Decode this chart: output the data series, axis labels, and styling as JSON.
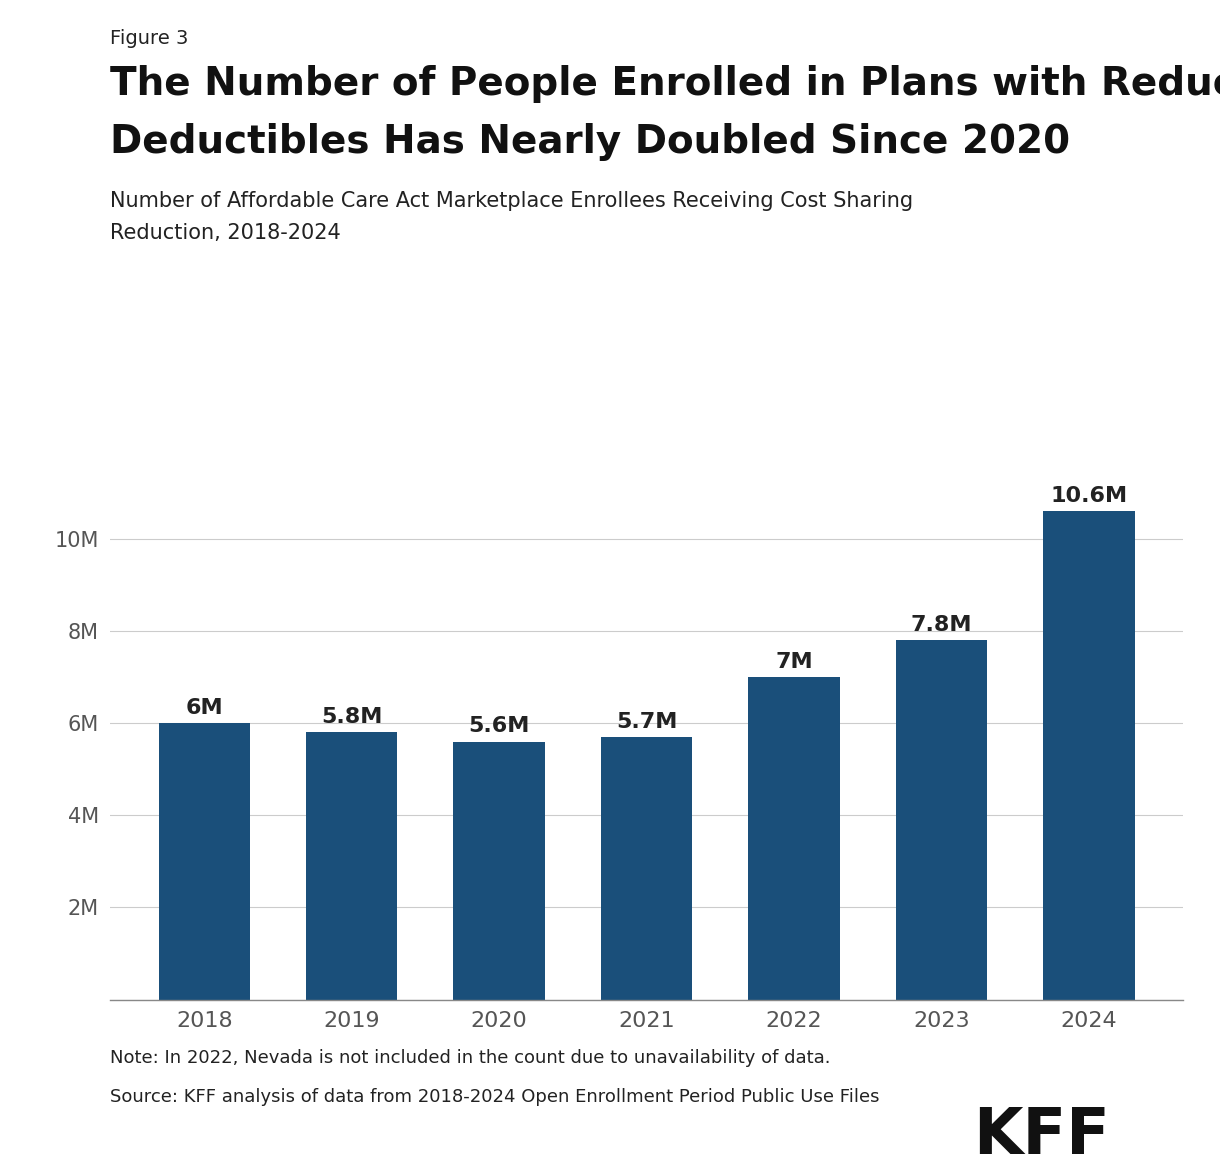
{
  "figure_label": "Figure 3",
  "title_line1": "The Number of People Enrolled in Plans with Reduced",
  "title_line2": "Deductibles Has Nearly Doubled Since 2020",
  "subtitle_line1": "Number of Affordable Care Act Marketplace Enrollees Receiving Cost Sharing",
  "subtitle_line2": "Reduction, 2018-2024",
  "categories": [
    "2018",
    "2019",
    "2020",
    "2021",
    "2022",
    "2023",
    "2024"
  ],
  "values": [
    6.0,
    5.8,
    5.6,
    5.7,
    7.0,
    7.8,
    10.6
  ],
  "labels": [
    "6M",
    "5.8M",
    "5.6M",
    "5.7M",
    "7M",
    "7.8M",
    "10.6M"
  ],
  "bar_color": "#1a4f7a",
  "background_color": "#ffffff",
  "ylim": [
    0,
    12
  ],
  "yticks": [
    0,
    2,
    4,
    6,
    8,
    10
  ],
  "ytick_labels": [
    "",
    "2M",
    "4M",
    "6M",
    "8M",
    "10M"
  ],
  "grid_color": "#cccccc",
  "tick_color": "#555555",
  "text_color": "#222222",
  "note_text": "Note: In 2022, Nevada is not included in the count due to unavailability of data.",
  "source_text": "Source: KFF analysis of data from 2018-2024 Open Enrollment Period Public Use Files",
  "kff_logo_text": "KFF",
  "figure_label_fontsize": 14,
  "title_fontsize": 28,
  "subtitle_fontsize": 15,
  "bar_label_fontsize": 16,
  "tick_fontsize": 15,
  "xtick_fontsize": 16,
  "note_fontsize": 13
}
